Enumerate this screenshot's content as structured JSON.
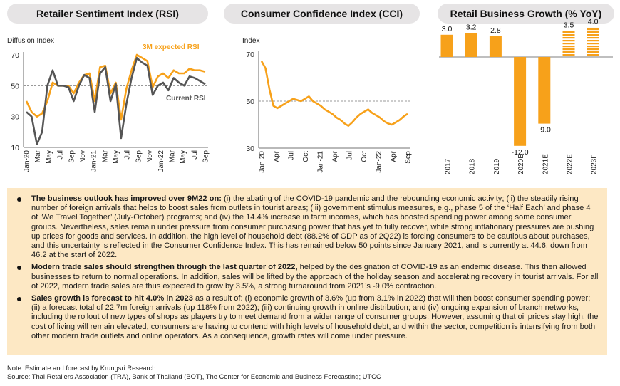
{
  "panels": {
    "rsi": {
      "title": "Retailer Sentiment Index (RSI)"
    },
    "cci": {
      "title": "Consumer Confidence Index (CCI)"
    },
    "growth": {
      "title": "Retail Business Growth (% YoY)"
    }
  },
  "colors": {
    "orange": "#f7a11a",
    "dark": "#555555",
    "panel_bg": "#fde8c4",
    "pill_bg": "#e6e4e5"
  },
  "chart_data": [
    {
      "type": "line",
      "title": "Retailer Sentiment Index (RSI)",
      "ylabel": "Diffusion Index",
      "ylim": [
        10,
        70
      ],
      "yticks": [
        10,
        30,
        50,
        70
      ],
      "reference_line": 50,
      "x_tick_labels": [
        "Jan-20",
        "Mar",
        "May",
        "Jul",
        "Sep",
        "Nov",
        "Jan-21",
        "Mar",
        "May",
        "Jul",
        "Sep",
        "Nov",
        "Jan-22",
        "Mar",
        "May",
        "Jul",
        "Sep"
      ],
      "annotations": [
        "3M expected RSI",
        "Current RSI"
      ],
      "series": [
        {
          "name": "Current RSI",
          "color": "#555555",
          "values": [
            33,
            30,
            12,
            20,
            50,
            60,
            50,
            50,
            49,
            40,
            50,
            57,
            55,
            33,
            58,
            62,
            40,
            51,
            16,
            38,
            55,
            68,
            65,
            63,
            44,
            50,
            52,
            47,
            55,
            52,
            50,
            56,
            55,
            53,
            51
          ]
        },
        {
          "name": "3M expected RSI",
          "color": "#f7a11a",
          "values": [
            40,
            33,
            30,
            32,
            40,
            52,
            50,
            50,
            50,
            45,
            52,
            57,
            58,
            40,
            62,
            63,
            45,
            52,
            28,
            48,
            60,
            70,
            68,
            66,
            49,
            56,
            58,
            55,
            60,
            58,
            58,
            61,
            60,
            60,
            59
          ]
        }
      ]
    },
    {
      "type": "line",
      "title": "Consumer Confidence Index (CCI)",
      "ylabel": "Index",
      "ylim": [
        30,
        70
      ],
      "yticks": [
        30,
        50,
        70
      ],
      "reference_line": 50,
      "x_tick_labels": [
        "Jan-20",
        "Apr",
        "Jul",
        "Oct",
        "Jan-21",
        "Apr",
        "Jul",
        "Oct",
        "Jan-22",
        "Apr",
        "Sep"
      ],
      "series": [
        {
          "name": "",
          "color": "#f7a11a",
          "values": [
            67,
            64,
            55,
            48,
            47,
            48,
            49,
            50,
            51,
            50.5,
            50,
            51,
            52,
            50,
            49,
            48,
            46.5,
            45.5,
            44.5,
            43,
            42,
            40.5,
            39.5,
            41,
            43,
            44.5,
            45.5,
            46.5,
            45,
            44,
            43,
            41.5,
            40.5,
            40,
            41,
            42,
            43.5,
            44.6
          ]
        }
      ]
    },
    {
      "type": "bar",
      "title": "Retail Business Growth (% YoY)",
      "categories": [
        "2017",
        "2018",
        "2019",
        "2020E",
        "2021E",
        "2022E",
        "2023F"
      ],
      "values": [
        3.0,
        3.2,
        2.8,
        -12.0,
        -9.0,
        3.5,
        4.0
      ],
      "value_labels": [
        "3.0",
        "3.2",
        "2.8",
        "-12.0",
        "-9.0",
        "3.5",
        "4.0"
      ],
      "forecast": [
        false,
        false,
        false,
        false,
        false,
        true,
        true
      ],
      "color": "#f7a11a"
    }
  ],
  "summary": {
    "bullets": [
      {
        "lead": "The business outlook has improved over 9M22 on:",
        "text": " (i) the abating of the COVID-19 pandemic and the rebounding economic activity; (ii) the steadily rising number of foreign arrivals that helps to boost sales from outlets in tourist areas; (iii) government stimulus measures, e.g., phase 5 of the ‘Half Each’ and phase 4 of ‘We Travel Together’ (July-October) programs; and (iv) the 14.4% increase in farm incomes, which has boosted spending power among some consumer groups. Nevertheless, sales remain under pressure from consumer purchasing power that has yet to fully recover, while strong inflationary pressures are pushing up prices for goods and services. In addition, the high level of household debt (88.2% of GDP as of 2Q22) is forcing consumers to be cautious about purchases, and this uncertainty is reflected in the Consumer Confidence Index. This has remained below 50 points since January 2021, and is currently at 44.6, down from 46.2 at the start of 2022."
      },
      {
        "lead": "Modern trade sales should strengthen through the last quarter of 2022,",
        "text": " helped by the designation of COVID-19 as an endemic disease. This then allowed businesses to return to normal operations. In addition, sales will be lifted by the approach of the holiday season and accelerating recovery in tourist arrivals. For all of 2022, modern trade sales are thus expected to grow by 3.5%, a strong turnaround from 2021’s -9.0% contraction."
      },
      {
        "lead": "Sales growth is forecast to hit 4.0% in 2023",
        "text": " as a result of: (i) economic growth of 3.6% (up from 3.1% in 2022) that will then boost consumer spending power; (ii) a forecast total of 22.7m foreign arrivals (up 118% from 2022); (iii) continuing growth in online distribution; and (iv) ongoing expansion of branch networks, including the rollout of new types of shops as players try to meet demand from a wider range of consumer groups. However, assuming that oil prices stay high, the cost of living will remain elevated, consumers are having to contend with high levels of household debt, and within the sector, competition is intensifying from both other modern trade outlets and online operators. As a consequence, growth rates will come under pressure."
      }
    ]
  },
  "notes": {
    "note": "Note: Estimate and forecast by Krungsri Research",
    "source": "Source:  Thai Retailers Association (TRA), Bank of Thailand (BOT), The Center for Economic and Business Forecasting; UTCC"
  }
}
